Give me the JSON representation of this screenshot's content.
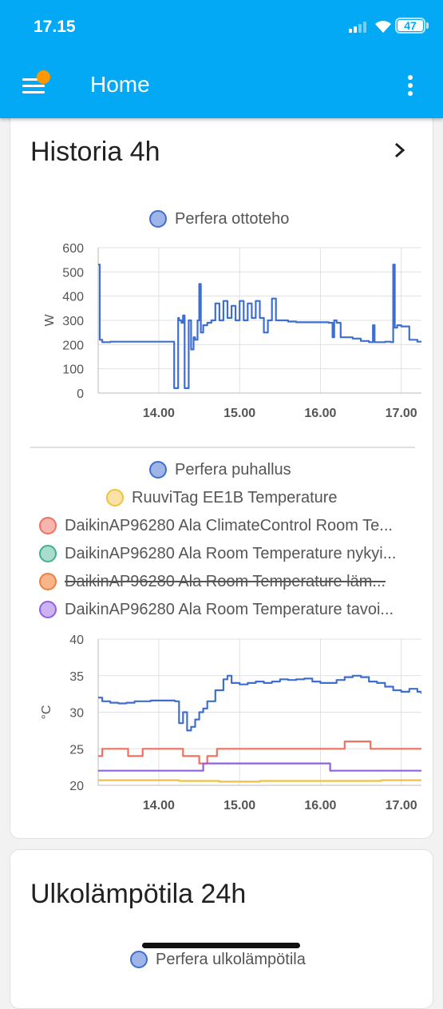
{
  "status_bar": {
    "time": "17.15",
    "battery": "47"
  },
  "app_bar": {
    "title": "Home"
  },
  "history_card": {
    "title": "Historia 4h",
    "chart1": {
      "legend": [
        {
          "label": "Perfera ottoteho",
          "color": "#3f6ed1"
        }
      ]
    },
    "chart2": {
      "legend": [
        {
          "label": "Perfera puhallus",
          "color": "#3f6ed1",
          "hidden": false
        },
        {
          "label": "RuuviTag EE1B Temperature",
          "color": "#f0c040",
          "hidden": false
        },
        {
          "label": "DaikinAP96280 Ala ClimateControl Room Te...",
          "color": "#f07060",
          "hidden": false
        },
        {
          "label": "DaikinAP96280 Ala Room Temperature nykyi...",
          "color": "#40b090",
          "hidden": false
        },
        {
          "label": "DaikinAP96280 Ala Room Temperature läm...",
          "color": "#f08040",
          "hidden": true
        },
        {
          "label": "DaikinAP96280 Ala Room Temperature tavoi...",
          "color": "#9060e0",
          "hidden": false
        }
      ]
    }
  },
  "chart_data": [
    {
      "type": "line",
      "series": [
        {
          "name": "Perfera ottoteho",
          "color": "#3f6ed1",
          "x": [
            13.25,
            13.27,
            13.3,
            13.4,
            13.6,
            13.8,
            14.0,
            14.1,
            14.18,
            14.19,
            14.22,
            14.24,
            14.25,
            14.28,
            14.3,
            14.32,
            14.35,
            14.37,
            14.4,
            14.43,
            14.45,
            14.48,
            14.5,
            14.52,
            14.55,
            14.6,
            14.65,
            14.7,
            14.75,
            14.8,
            14.85,
            14.9,
            14.95,
            15.0,
            15.05,
            15.1,
            15.15,
            15.2,
            15.25,
            15.3,
            15.35,
            15.4,
            15.45,
            15.5,
            15.6,
            15.7,
            15.8,
            15.9,
            16.0,
            16.1,
            16.15,
            16.17,
            16.2,
            16.25,
            16.3,
            16.4,
            16.5,
            16.6,
            16.65,
            16.67,
            16.7,
            16.8,
            16.87,
            16.9,
            16.92,
            16.95,
            17.0,
            17.1,
            17.2,
            17.25
          ],
          "y": [
            530,
            220,
            210,
            212,
            212,
            212,
            212,
            212,
            212,
            20,
            20,
            310,
            300,
            290,
            320,
            20,
            20,
            300,
            180,
            230,
            220,
            300,
            450,
            250,
            280,
            290,
            300,
            370,
            300,
            380,
            310,
            360,
            300,
            380,
            300,
            370,
            310,
            380,
            310,
            250,
            300,
            390,
            300,
            300,
            295,
            292,
            292,
            292,
            292,
            290,
            230,
            300,
            290,
            230,
            230,
            225,
            215,
            210,
            280,
            210,
            210,
            212,
            210,
            530,
            270,
            280,
            275,
            220,
            212,
            212
          ]
        }
      ],
      "x_ticks": [
        "14.00",
        "15.00",
        "16.00",
        "17.00"
      ],
      "y_ticks": [
        "0",
        "100",
        "200",
        "300",
        "400",
        "500",
        "600"
      ],
      "ylabel": "W",
      "ylim": [
        0,
        600
      ],
      "xlim": [
        13.25,
        17.25
      ],
      "grid": true
    },
    {
      "type": "line",
      "series": [
        {
          "name": "Perfera puhallus",
          "color": "#3f6ed1",
          "x": [
            13.25,
            13.3,
            13.4,
            13.5,
            13.6,
            13.7,
            13.8,
            13.9,
            14.0,
            14.1,
            14.2,
            14.25,
            14.3,
            14.35,
            14.4,
            14.45,
            14.5,
            14.55,
            14.6,
            14.7,
            14.8,
            14.85,
            14.9,
            15.0,
            15.1,
            15.2,
            15.3,
            15.4,
            15.5,
            15.6,
            15.7,
            15.8,
            15.9,
            16.0,
            16.1,
            16.2,
            16.3,
            16.4,
            16.5,
            16.6,
            16.7,
            16.8,
            16.9,
            17.0,
            17.1,
            17.2,
            17.25
          ],
          "y": [
            32,
            31.5,
            31.3,
            31.2,
            31.3,
            31.5,
            31.5,
            31.6,
            31.6,
            31.6,
            31.5,
            28.5,
            30,
            27.5,
            28,
            29,
            30,
            30.5,
            31.5,
            33,
            34.5,
            35,
            34,
            33.8,
            34,
            34.2,
            34,
            34.2,
            34.5,
            34.4,
            34.5,
            34.6,
            34.2,
            34,
            34,
            34.4,
            34.8,
            35,
            34.8,
            34.2,
            34,
            33.5,
            33,
            32.8,
            33.2,
            32.8,
            32.5
          ]
        },
        {
          "name": "RuuviTag EE1B Temperature",
          "color": "#f0c040",
          "x": [
            13.25,
            13.75,
            14.25,
            14.75,
            15.25,
            15.75,
            16.25,
            16.75,
            17.25
          ],
          "y": [
            20.7,
            20.7,
            20.6,
            20.5,
            20.6,
            20.6,
            20.6,
            20.7,
            20.7
          ]
        },
        {
          "name": "DaikinAP96280 Ala ClimateControl Room Te...",
          "color": "#f07060",
          "x": [
            13.25,
            13.3,
            13.3,
            13.62,
            13.62,
            13.8,
            13.8,
            14.3,
            14.3,
            14.5,
            14.5,
            14.6,
            14.6,
            14.72,
            14.72,
            14.9,
            14.9,
            16.3,
            16.3,
            16.62,
            16.62,
            17.25
          ],
          "y": [
            24,
            24,
            25,
            25,
            24,
            24,
            25,
            25,
            24,
            24,
            23,
            23,
            24,
            24,
            25,
            25,
            25,
            25,
            26,
            26,
            25,
            25
          ]
        },
        {
          "name": "DaikinAP96280 Ala Room Temperature tavoi...",
          "color": "#9060e0",
          "x": [
            13.25,
            14.55,
            14.55,
            16.12,
            16.12,
            17.25
          ],
          "y": [
            22,
            22,
            23,
            23,
            22,
            22
          ]
        }
      ],
      "x_ticks": [
        "14.00",
        "15.00",
        "16.00",
        "17.00"
      ],
      "y_ticks": [
        "20",
        "25",
        "30",
        "35",
        "40"
      ],
      "ylabel": "°C",
      "ylim": [
        20,
        40
      ],
      "xlim": [
        13.25,
        17.25
      ],
      "grid": true
    }
  ],
  "outdoor_card": {
    "title": "Ulkolämpötila 24h",
    "legend": [
      {
        "label": "Perfera ulkolämpötila",
        "color": "#3f6ed1"
      }
    ]
  }
}
